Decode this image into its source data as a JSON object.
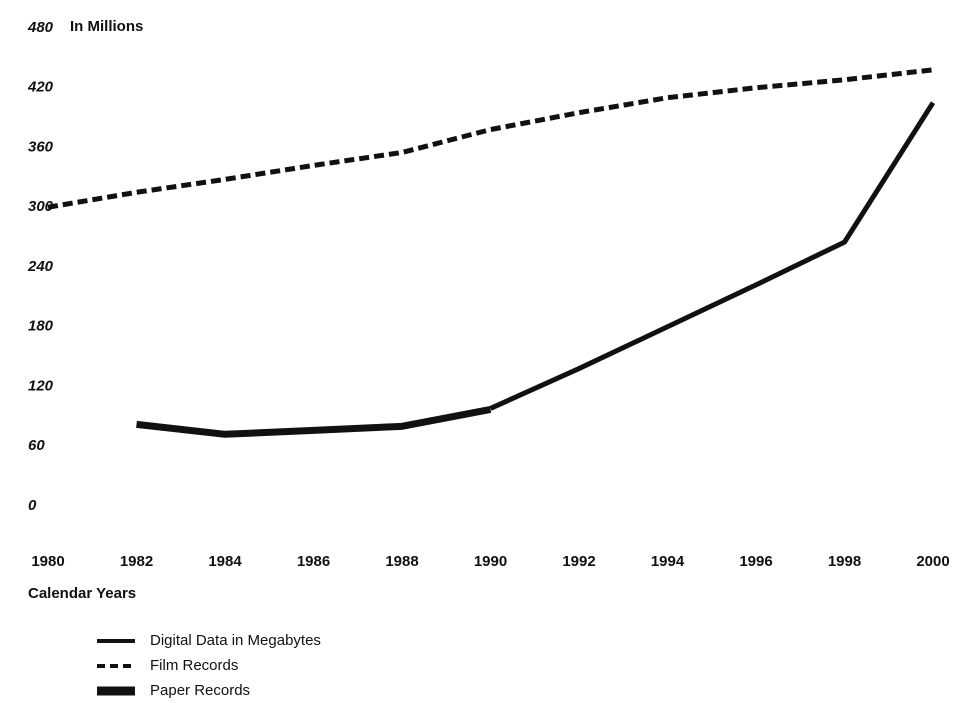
{
  "chart_data": {
    "type": "line",
    "y_label": "In Millions",
    "x_label": "Calendar Years",
    "x": [
      1980,
      1982,
      1984,
      1986,
      1988,
      1990,
      1992,
      1994,
      1996,
      1998,
      2000
    ],
    "xlim": [
      1980,
      2000
    ],
    "xticks": [
      1980,
      1982,
      1984,
      1986,
      1988,
      1990,
      1992,
      1994,
      1996,
      1998,
      2000
    ],
    "ylim": [
      0,
      480
    ],
    "yticks": [
      0,
      60,
      120,
      180,
      240,
      300,
      360,
      420,
      480
    ],
    "series": [
      {
        "name": "Digital Data in Megabytes",
        "color": "#111111",
        "style": "solid",
        "values": [
          null,
          null,
          null,
          null,
          null,
          98,
          138,
          180,
          222,
          265,
          405
        ]
      },
      {
        "name": "Film Records",
        "color": "#111111",
        "style": "dashed",
        "values": [
          300,
          315,
          328,
          342,
          355,
          378,
          395,
          410,
          420,
          428,
          438
        ]
      },
      {
        "name": "Paper Records",
        "color": "#111111",
        "style": "thick",
        "values": [
          null,
          82,
          72,
          76,
          80,
          97,
          null,
          null,
          null,
          null,
          null
        ]
      }
    ]
  }
}
